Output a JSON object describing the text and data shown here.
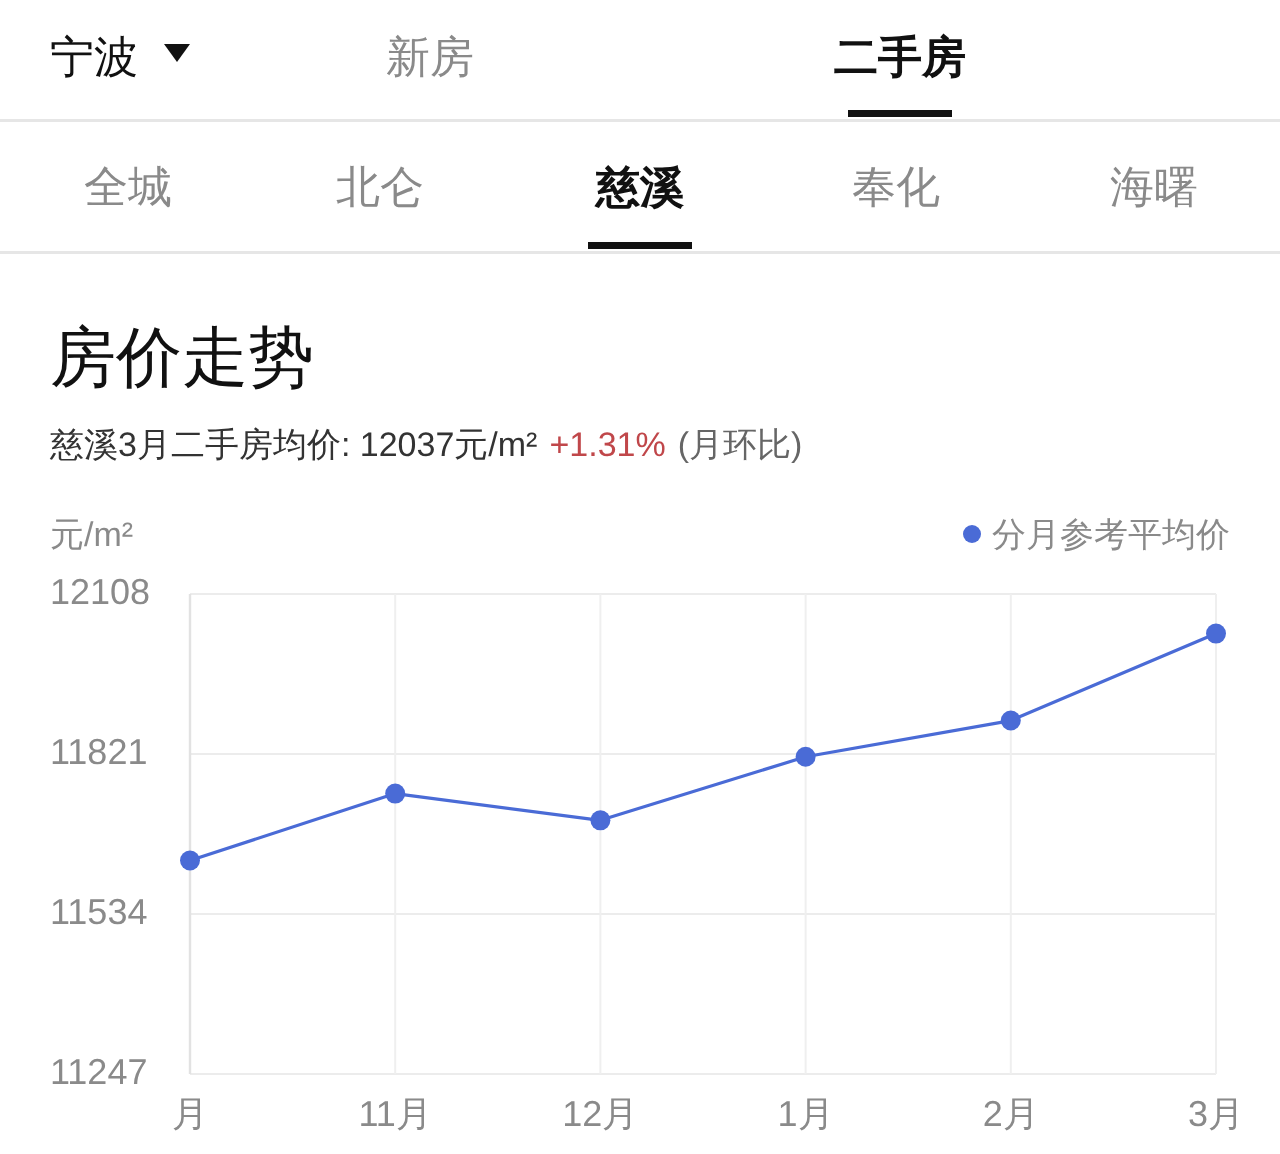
{
  "chart_data": {
    "type": "line",
    "title": "房价走势",
    "subtitle": "慈溪3月二手房均价: 12037元/m²",
    "ylabel": "元/m²",
    "annotations": [
      "宁波",
      "新房",
      "二手房",
      "全城",
      "北仑",
      "慈溪",
      "奉化",
      "海曙",
      "+1.31%",
      "(月环比)"
    ],
    "categories": [
      "月",
      "11月",
      "12月",
      "1月",
      "2月",
      "3月"
    ],
    "series": [
      {
        "name": "分月参考平均价",
        "color": "#4a6bd6",
        "values": [
          11630,
          11750,
          11702,
          11816,
          11881,
          12037
        ]
      }
    ],
    "ylim": [
      11247,
      12108
    ],
    "yticks": [
      11247,
      11534,
      11821,
      12108
    ],
    "grid": true,
    "legend": "top right",
    "marker": "circle"
  }
}
